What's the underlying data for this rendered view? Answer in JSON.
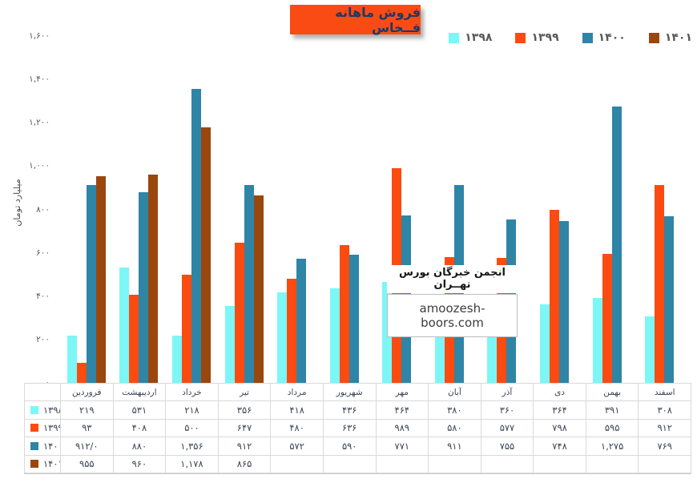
{
  "title": {
    "text": "فروش ماهانه فــخاس"
  },
  "watermark": {
    "line1": "انجمن خبرگان بورس تهــران",
    "line2": "amoozesh-boors.com"
  },
  "colors": {
    "title_bg": "#FB4B14",
    "title_text": "#1F3864",
    "legend_text": "#595959",
    "table_text": "#3A4656",
    "table_border": "#D9D9D9"
  },
  "chart_data": {
    "type": "bar",
    "title": "فروش ماهانه فــخاس",
    "ylabel": "میلیارد تومان",
    "xlabel": "",
    "ylim": [
      0,
      1600
    ],
    "grid": false,
    "legend_position": "top-right",
    "categories": [
      "فروردین",
      "اردیبهشت",
      "خرداد",
      "تیر",
      "مرداد",
      "شهریور",
      "مهر",
      "آبان",
      "آذر",
      "دی",
      "بهمن",
      "اسفند"
    ],
    "series": [
      {
        "name": "۱۳۹۸",
        "year": 1398,
        "color": "#7DF6F6",
        "values": [
          219,
          531,
          218,
          356,
          418,
          436,
          464,
          380,
          360,
          364,
          391,
          308
        ],
        "labels": [
          "۲۱۹",
          "۵۳۱",
          "۲۱۸",
          "۳۵۶",
          "۴۱۸",
          "۴۳۶",
          "۴۶۴",
          "۳۸۰",
          "۳۶۰",
          "۳۶۴",
          "۳۹۱",
          "۳۰۸"
        ]
      },
      {
        "name": "۱۳۹۹",
        "year": 1399,
        "color": "#FB4B10",
        "values": [
          93,
          408,
          500,
          647,
          480,
          636,
          989,
          580,
          577,
          798,
          595,
          912
        ],
        "labels": [
          "۹۳",
          "۴۰۸",
          "۵۰۰",
          "۶۴۷",
          "۴۸۰",
          "۶۳۶",
          "۹۸۹",
          "۵۸۰",
          "۵۷۷",
          "۷۹۸",
          "۵۹۵",
          "۹۱۲"
        ]
      },
      {
        "name": "۱۴۰۰",
        "year": 1400,
        "color": "#2E85A6",
        "values": [
          912,
          880,
          1356,
          912,
          572,
          590,
          771,
          911,
          755,
          748,
          1275,
          769
        ],
        "labels": [
          "۹۱۲/۰",
          "۸۸۰",
          "۱,۳۵۶",
          "۹۱۲",
          "۵۷۲",
          "۵۹۰",
          "۷۷۱",
          "۹۱۱",
          "۷۵۵",
          "۷۴۸",
          "۱,۲۷۵",
          "۷۶۹"
        ]
      },
      {
        "name": "۱۴۰۱",
        "year": 1401,
        "color": "#9A470E",
        "values": [
          955,
          960,
          1178,
          865,
          null,
          null,
          null,
          null,
          null,
          null,
          null,
          null
        ],
        "labels": [
          "۹۵۵",
          "۹۶۰",
          "۱,۱۷۸",
          "۸۶۵",
          "",
          "",
          "",
          "",
          "",
          "",
          "",
          ""
        ]
      }
    ],
    "yticks": [
      {
        "v": 0,
        "label": "۰"
      },
      {
        "v": 200,
        "label": "۲۰۰"
      },
      {
        "v": 400,
        "label": "۴۰۰"
      },
      {
        "v": 600,
        "label": "۶۰۰"
      },
      {
        "v": 800,
        "label": "۸۰۰"
      },
      {
        "v": 1000,
        "label": "۱,۰۰۰"
      },
      {
        "v": 1200,
        "label": "۱,۲۰۰"
      },
      {
        "v": 1400,
        "label": "۱,۴۰۰"
      },
      {
        "v": 1600,
        "label": "۱,۶۰۰"
      }
    ]
  }
}
